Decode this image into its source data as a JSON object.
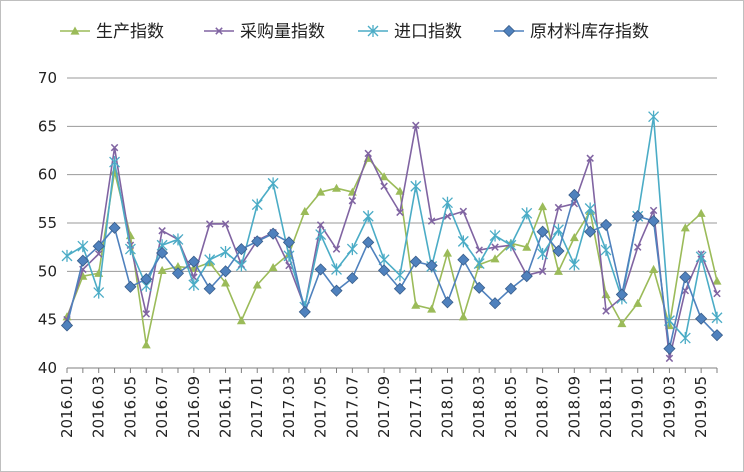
{
  "chart_data": {
    "type": "line",
    "title": "",
    "xlabel": "",
    "ylabel": "",
    "ylim": [
      40,
      70
    ],
    "yticks": [
      40,
      45,
      50,
      55,
      60,
      65,
      70
    ],
    "grid": "horizontal",
    "legend_position": "top",
    "x": [
      "2016.01",
      "2016.02",
      "2016.03",
      "2016.04",
      "2016.05",
      "2016.06",
      "2016.07",
      "2016.08",
      "2016.09",
      "2016.10",
      "2016.11",
      "2016.12",
      "2017.01",
      "2017.02",
      "2017.03",
      "2017.04",
      "2017.05",
      "2017.06",
      "2017.07",
      "2017.08",
      "2017.09",
      "2017.10",
      "2017.11",
      "2017.12",
      "2018.01",
      "2018.02",
      "2018.03",
      "2018.04",
      "2018.05",
      "2018.06",
      "2018.07",
      "2018.08",
      "2018.09",
      "2018.10",
      "2018.11",
      "2018.12",
      "2019.01",
      "2019.02",
      "2019.03",
      "2019.04",
      "2019.05",
      "2019.06"
    ],
    "x_tick_labels": [
      "2016.01",
      "2016.03",
      "2016.05",
      "2016.07",
      "2016.09",
      "2016.11",
      "2017.01",
      "2017.03",
      "2017.05",
      "2017.07",
      "2017.09",
      "2017.11",
      "2018.01",
      "2018.03",
      "2018.05",
      "2018.07",
      "2018.09",
      "2018.11",
      "2019.01",
      "2019.03",
      "2019.05"
    ],
    "series": [
      {
        "name": "生产指数",
        "color": "#9bbb59",
        "marker": "triangle",
        "values": [
          45.3,
          49.5,
          49.8,
          60.3,
          53.7,
          42.4,
          50.1,
          50.5,
          50.3,
          50.9,
          48.8,
          44.9,
          48.6,
          50.4,
          51.8,
          56.2,
          58.2,
          58.6,
          58.2,
          61.7,
          59.8,
          58.3,
          46.5,
          46.1,
          51.9,
          45.3,
          50.7,
          51.3,
          52.9,
          52.5,
          56.7,
          50.0,
          53.5,
          56.2,
          47.6,
          44.6,
          46.7,
          50.2,
          44.4,
          54.5,
          56.0,
          49.0
        ]
      },
      {
        "name": "采购量指数",
        "color": "#8064a2",
        "marker": "x",
        "values": [
          45.0,
          50.2,
          51.8,
          62.8,
          52.7,
          45.6,
          54.2,
          53.3,
          49.4,
          54.9,
          54.9,
          50.7,
          53.2,
          54.0,
          50.6,
          46.3,
          54.8,
          52.3,
          57.3,
          62.2,
          58.8,
          56.1,
          65.1,
          55.2,
          55.7,
          56.2,
          52.2,
          52.5,
          52.7,
          49.6,
          50.0,
          56.6,
          57.0,
          61.7,
          45.9,
          47.3,
          52.5,
          56.3,
          41.0,
          48.0,
          51.8,
          47.7
        ]
      },
      {
        "name": "进口指数",
        "color": "#4bacc6",
        "marker": "star",
        "values": [
          51.6,
          52.6,
          47.8,
          61.3,
          52.3,
          48.5,
          52.7,
          53.3,
          48.6,
          51.2,
          52.0,
          50.6,
          56.9,
          59.1,
          51.6,
          46.3,
          53.8,
          50.2,
          52.3,
          55.7,
          51.2,
          49.6,
          58.8,
          50.5,
          57.1,
          53.1,
          50.8,
          53.7,
          52.7,
          56.0,
          51.8,
          54.3,
          50.7,
          56.5,
          52.2,
          47.2,
          55.7,
          66.0,
          44.9,
          43.1,
          51.5,
          45.2
        ]
      },
      {
        "name": "原材料库存指数",
        "color": "#4f81bd",
        "marker": "diamond",
        "values": [
          44.4,
          51.1,
          52.6,
          54.5,
          48.4,
          49.2,
          51.9,
          49.8,
          51.0,
          48.2,
          50.0,
          52.3,
          53.1,
          53.9,
          53.0,
          45.8,
          50.2,
          48.0,
          49.3,
          53.0,
          50.1,
          48.2,
          51.0,
          50.6,
          46.8,
          51.2,
          48.3,
          46.7,
          48.2,
          49.5,
          54.1,
          52.1,
          57.9,
          54.1,
          54.8,
          47.6,
          55.7,
          55.2,
          42.0,
          49.4,
          45.1,
          43.4
        ]
      }
    ]
  }
}
